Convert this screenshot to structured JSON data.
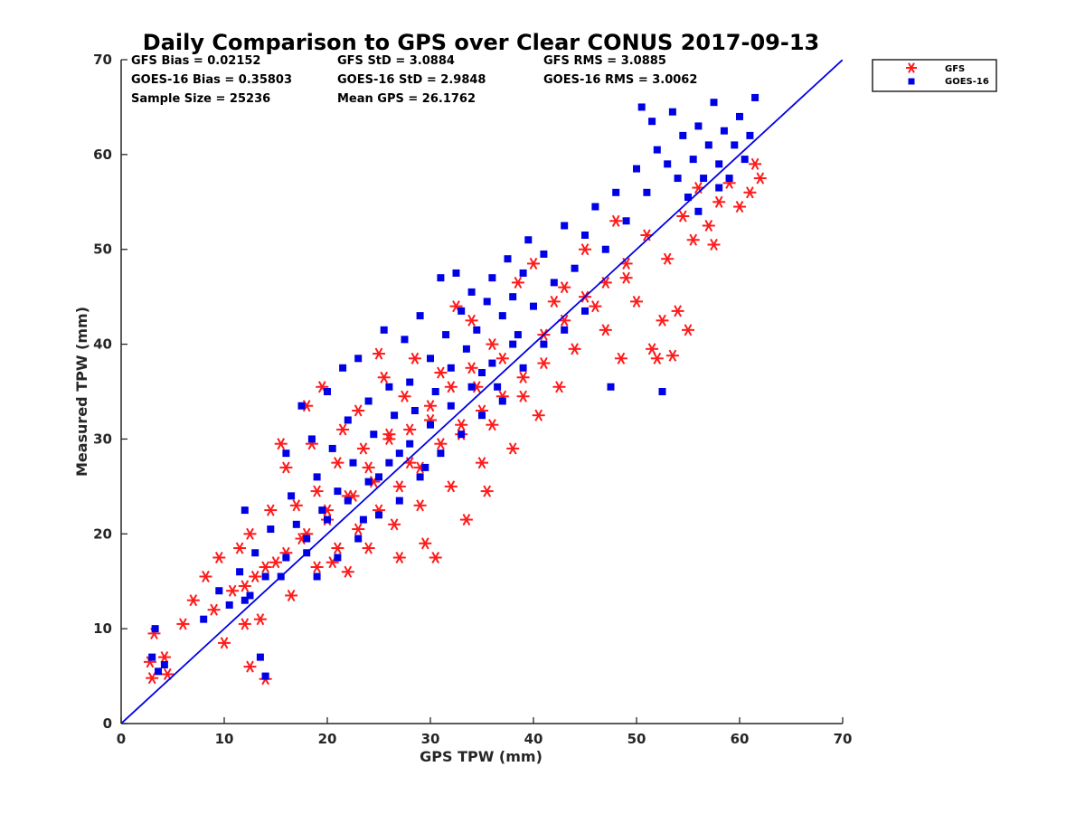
{
  "chart_data": {
    "type": "scatter",
    "title": "Daily Comparison to GPS over Clear CONUS 2017-09-13",
    "xlabel": "GPS TPW (mm)",
    "ylabel": "Measured TPW (mm)",
    "xlim": [
      0,
      70
    ],
    "ylim": [
      0,
      70
    ],
    "xticks": [
      0,
      10,
      20,
      30,
      40,
      50,
      60,
      70
    ],
    "yticks": [
      0,
      10,
      20,
      30,
      40,
      50,
      60,
      70
    ],
    "grid": false,
    "legend_position": "top-right outside",
    "reference_line": {
      "name": "1:1 line",
      "from": [
        0,
        0
      ],
      "to": [
        70,
        70
      ],
      "color": "#0000e6"
    },
    "stats": {
      "gfs_bias": "GFS Bias = 0.02152",
      "goes_bias": "GOES-16 Bias = 0.35803",
      "sample_size": "Sample Size = 25236",
      "gfs_std": "GFS StD = 3.0884",
      "goes_std": "GOES-16 StD = 2.9848",
      "mean_gps": "Mean GPS = 26.1762",
      "gfs_rms": "GFS RMS = 3.0885",
      "goes_rms": "GOES-16 RMS = 3.0062"
    },
    "series": [
      {
        "name": "GFS",
        "marker": "asterisk",
        "color": "#ff1a1a",
        "points": [
          [
            2.8,
            6.5
          ],
          [
            3.0,
            4.8
          ],
          [
            3.2,
            9.5
          ],
          [
            4.2,
            7.0
          ],
          [
            4.5,
            5.2
          ],
          [
            6.0,
            10.5
          ],
          [
            7.0,
            13.0
          ],
          [
            8.2,
            15.5
          ],
          [
            9.0,
            12.0
          ],
          [
            9.5,
            17.5
          ],
          [
            10.0,
            8.5
          ],
          [
            10.8,
            14.0
          ],
          [
            11.5,
            18.5
          ],
          [
            12.0,
            10.5
          ],
          [
            12.5,
            20.0
          ],
          [
            13.0,
            15.5
          ],
          [
            13.5,
            11.0
          ],
          [
            14.0,
            4.7
          ],
          [
            12.5,
            6.0
          ],
          [
            14.5,
            22.5
          ],
          [
            15.0,
            17.0
          ],
          [
            15.5,
            29.5
          ],
          [
            16.0,
            27.0
          ],
          [
            16.5,
            13.5
          ],
          [
            17.0,
            23.0
          ],
          [
            17.5,
            19.5
          ],
          [
            18.0,
            33.5
          ],
          [
            18.5,
            29.5
          ],
          [
            19.0,
            24.5
          ],
          [
            19.5,
            35.5
          ],
          [
            20.0,
            21.5
          ],
          [
            20.5,
            17.0
          ],
          [
            21.0,
            27.5
          ],
          [
            21.5,
            31.0
          ],
          [
            22.0,
            16.0
          ],
          [
            22.5,
            24.0
          ],
          [
            23.0,
            33.0
          ],
          [
            23.5,
            29.0
          ],
          [
            24.0,
            18.5
          ],
          [
            24.5,
            25.5
          ],
          [
            25.0,
            39.0
          ],
          [
            25.5,
            36.5
          ],
          [
            26.0,
            30.5
          ],
          [
            26.5,
            21.0
          ],
          [
            27.0,
            17.5
          ],
          [
            27.5,
            34.5
          ],
          [
            28.0,
            27.5
          ],
          [
            28.5,
            38.5
          ],
          [
            29.0,
            23.0
          ],
          [
            29.5,
            19.0
          ],
          [
            30.0,
            32.0
          ],
          [
            30.5,
            17.5
          ],
          [
            31.0,
            37.0
          ],
          [
            32.0,
            25.0
          ],
          [
            32.5,
            44.0
          ],
          [
            33.0,
            30.5
          ],
          [
            33.5,
            21.5
          ],
          [
            34.0,
            42.5
          ],
          [
            34.5,
            35.5
          ],
          [
            35.0,
            27.5
          ],
          [
            35.5,
            24.5
          ],
          [
            36.0,
            31.5
          ],
          [
            37.0,
            38.5
          ],
          [
            38.0,
            29.0
          ],
          [
            38.5,
            46.5
          ],
          [
            39.0,
            34.5
          ],
          [
            40.0,
            48.5
          ],
          [
            40.5,
            32.5
          ],
          [
            41.0,
            38.0
          ],
          [
            42.0,
            44.5
          ],
          [
            42.5,
            35.5
          ],
          [
            43.0,
            46.0
          ],
          [
            44.0,
            39.5
          ],
          [
            45.0,
            50.0
          ],
          [
            46.0,
            44.0
          ],
          [
            47.0,
            41.5
          ],
          [
            48.0,
            53.0
          ],
          [
            48.5,
            38.5
          ],
          [
            49.0,
            47.0
          ],
          [
            50.0,
            44.5
          ],
          [
            51.0,
            51.5
          ],
          [
            51.5,
            39.5
          ],
          [
            52.0,
            38.5
          ],
          [
            52.5,
            42.5
          ],
          [
            53.0,
            49.0
          ],
          [
            53.5,
            38.8
          ],
          [
            54.0,
            43.5
          ],
          [
            54.5,
            53.5
          ],
          [
            55.0,
            41.5
          ],
          [
            55.5,
            51.0
          ],
          [
            56.0,
            56.5
          ],
          [
            57.0,
            52.5
          ],
          [
            57.5,
            50.5
          ],
          [
            58.0,
            55.0
          ],
          [
            59.0,
            57.0
          ],
          [
            60.0,
            54.5
          ],
          [
            61.0,
            56.0
          ],
          [
            61.5,
            59.0
          ],
          [
            62.0,
            57.5
          ],
          [
            26.0,
            30.0
          ],
          [
            24.0,
            27.0
          ],
          [
            22.0,
            24.0
          ],
          [
            20.0,
            22.5
          ],
          [
            18.0,
            20.0
          ],
          [
            16.0,
            18.0
          ],
          [
            14.0,
            16.5
          ],
          [
            12.0,
            14.5
          ],
          [
            28.0,
            31.0
          ],
          [
            30.0,
            33.5
          ],
          [
            32.0,
            35.5
          ],
          [
            34.0,
            37.5
          ],
          [
            36.0,
            40.0
          ],
          [
            27.0,
            25.0
          ],
          [
            25.0,
            22.5
          ],
          [
            23.0,
            20.5
          ],
          [
            21.0,
            18.5
          ],
          [
            19.0,
            16.5
          ],
          [
            29.0,
            27.0
          ],
          [
            31.0,
            29.5
          ],
          [
            33.0,
            31.5
          ],
          [
            35.0,
            33.0
          ],
          [
            37.0,
            34.5
          ],
          [
            39.0,
            36.5
          ],
          [
            41.0,
            41.0
          ],
          [
            43.0,
            42.5
          ],
          [
            45.0,
            45.0
          ],
          [
            47.0,
            46.5
          ],
          [
            49.0,
            48.5
          ]
        ]
      },
      {
        "name": "GOES-16",
        "marker": "square",
        "color": "#0000e6",
        "points": [
          [
            3.0,
            7.0
          ],
          [
            3.3,
            10.0
          ],
          [
            3.6,
            5.5
          ],
          [
            4.2,
            6.2
          ],
          [
            8.0,
            11.0
          ],
          [
            9.5,
            14.0
          ],
          [
            10.5,
            12.5
          ],
          [
            11.5,
            16.0
          ],
          [
            12.5,
            13.5
          ],
          [
            12.0,
            22.5
          ],
          [
            13.0,
            18.0
          ],
          [
            13.5,
            7.0
          ],
          [
            14.0,
            5.0
          ],
          [
            14.5,
            20.5
          ],
          [
            15.5,
            15.5
          ],
          [
            16.0,
            28.5
          ],
          [
            16.5,
            24.0
          ],
          [
            17.0,
            21.0
          ],
          [
            17.5,
            33.5
          ],
          [
            18.0,
            18.0
          ],
          [
            18.5,
            30.0
          ],
          [
            19.0,
            26.0
          ],
          [
            19.5,
            22.5
          ],
          [
            20.0,
            35.0
          ],
          [
            20.5,
            29.0
          ],
          [
            21.0,
            24.5
          ],
          [
            21.5,
            37.5
          ],
          [
            22.0,
            32.0
          ],
          [
            22.5,
            27.5
          ],
          [
            23.0,
            38.5
          ],
          [
            23.5,
            21.5
          ],
          [
            24.0,
            34.0
          ],
          [
            24.5,
            30.5
          ],
          [
            25.0,
            26.0
          ],
          [
            25.5,
            41.5
          ],
          [
            26.0,
            35.5
          ],
          [
            26.5,
            32.5
          ],
          [
            27.0,
            28.5
          ],
          [
            27.5,
            40.5
          ],
          [
            28.0,
            36.0
          ],
          [
            28.5,
            33.0
          ],
          [
            29.0,
            43.0
          ],
          [
            29.5,
            27.0
          ],
          [
            30.0,
            38.5
          ],
          [
            30.5,
            35.0
          ],
          [
            31.0,
            47.0
          ],
          [
            31.5,
            41.0
          ],
          [
            32.0,
            37.5
          ],
          [
            32.5,
            47.5
          ],
          [
            33.0,
            43.5
          ],
          [
            33.5,
            39.5
          ],
          [
            34.0,
            45.5
          ],
          [
            34.5,
            41.5
          ],
          [
            35.0,
            37.0
          ],
          [
            35.5,
            44.5
          ],
          [
            36.0,
            47.0
          ],
          [
            36.5,
            35.5
          ],
          [
            37.0,
            43.0
          ],
          [
            37.5,
            49.0
          ],
          [
            38.0,
            45.0
          ],
          [
            38.5,
            41.0
          ],
          [
            39.0,
            47.5
          ],
          [
            39.5,
            51.0
          ],
          [
            40.0,
            44.0
          ],
          [
            41.0,
            49.5
          ],
          [
            42.0,
            46.5
          ],
          [
            43.0,
            52.5
          ],
          [
            44.0,
            48.0
          ],
          [
            45.0,
            51.5
          ],
          [
            46.0,
            54.5
          ],
          [
            47.0,
            50.0
          ],
          [
            47.5,
            35.5
          ],
          [
            48.0,
            56.0
          ],
          [
            49.0,
            53.0
          ],
          [
            50.0,
            58.5
          ],
          [
            50.5,
            65.0
          ],
          [
            51.0,
            56.0
          ],
          [
            51.5,
            63.5
          ],
          [
            52.0,
            60.5
          ],
          [
            52.5,
            35.0
          ],
          [
            53.0,
            59.0
          ],
          [
            53.5,
            64.5
          ],
          [
            54.0,
            57.5
          ],
          [
            54.5,
            62.0
          ],
          [
            55.0,
            55.5
          ],
          [
            55.5,
            59.5
          ],
          [
            56.0,
            63.0
          ],
          [
            56.5,
            57.5
          ],
          [
            57.0,
            61.0
          ],
          [
            57.5,
            65.5
          ],
          [
            58.0,
            59.0
          ],
          [
            58.5,
            62.5
          ],
          [
            59.0,
            57.5
          ],
          [
            59.5,
            61.0
          ],
          [
            60.0,
            64.0
          ],
          [
            60.5,
            59.5
          ],
          [
            61.0,
            62.0
          ],
          [
            61.5,
            66.0
          ],
          [
            26.0,
            27.5
          ],
          [
            24.0,
            25.5
          ],
          [
            22.0,
            23.5
          ],
          [
            20.0,
            21.5
          ],
          [
            18.0,
            19.5
          ],
          [
            16.0,
            17.5
          ],
          [
            14.0,
            15.5
          ],
          [
            12.0,
            13.0
          ],
          [
            28.0,
            29.5
          ],
          [
            30.0,
            31.5
          ],
          [
            32.0,
            33.5
          ],
          [
            34.0,
            35.5
          ],
          [
            36.0,
            38.0
          ],
          [
            38.0,
            40.0
          ],
          [
            27.0,
            23.5
          ],
          [
            25.0,
            22.0
          ],
          [
            23.0,
            19.5
          ],
          [
            21.0,
            17.5
          ],
          [
            19.0,
            15.5
          ],
          [
            29.0,
            26.0
          ],
          [
            31.0,
            28.5
          ],
          [
            33.0,
            30.5
          ],
          [
            35.0,
            32.5
          ],
          [
            37.0,
            34.0
          ],
          [
            39.0,
            37.5
          ],
          [
            41.0,
            40.0
          ],
          [
            43.0,
            41.5
          ],
          [
            45.0,
            43.5
          ],
          [
            56.0,
            54.0
          ],
          [
            58.0,
            56.5
          ]
        ]
      }
    ]
  }
}
